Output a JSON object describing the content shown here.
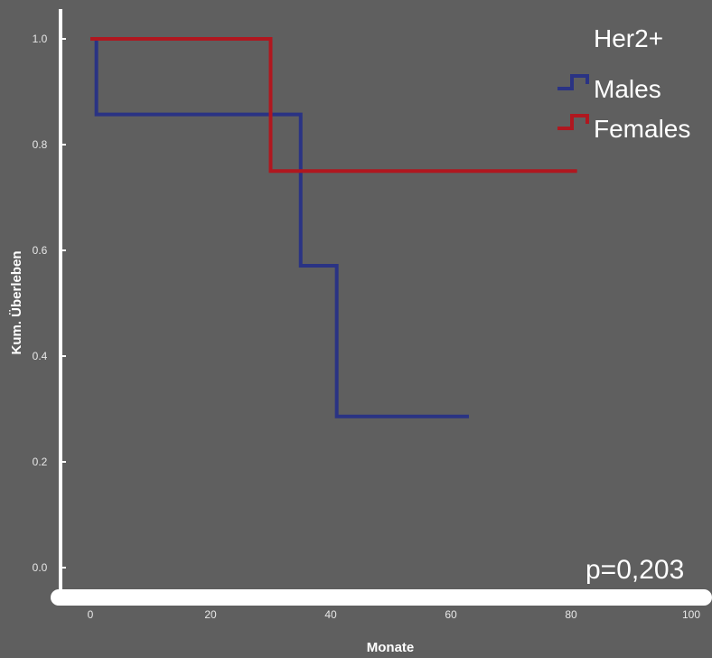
{
  "chart_data": {
    "type": "line",
    "step": true,
    "title": "Her2+",
    "xlabel": "Monate",
    "ylabel": "Kum. Überleben",
    "xlim": [
      0,
      100
    ],
    "ylim": [
      0,
      1.0
    ],
    "x_ticks": [
      0,
      20,
      40,
      60,
      80,
      100
    ],
    "x_tick_labels": [
      "0",
      "20",
      "40",
      "60",
      "80",
      "100"
    ],
    "y_ticks": [
      0.0,
      0.2,
      0.4,
      0.6,
      0.8,
      1.0
    ],
    "y_tick_labels": [
      "0.0",
      "0.2",
      "0.4",
      "0.6",
      "0.8",
      "1.0"
    ],
    "grid": false,
    "legend_position": "top-right",
    "annotation": "p=0,203",
    "series": [
      {
        "name": "Males",
        "color": "#2a3384",
        "x": [
          0,
          1,
          35,
          41,
          63
        ],
        "y": [
          1.0,
          0.857,
          0.571,
          0.286,
          0.286
        ]
      },
      {
        "name": "Females",
        "color": "#b0171f",
        "x": [
          0,
          30,
          81
        ],
        "y": [
          1.0,
          0.75,
          0.75
        ]
      }
    ]
  }
}
